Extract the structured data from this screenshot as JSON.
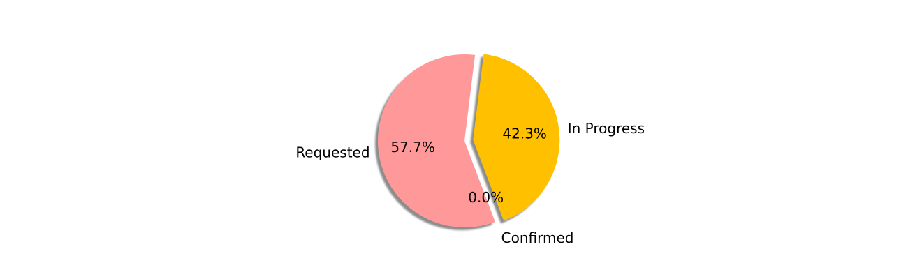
{
  "chart_data": {
    "type": "pie",
    "title": "",
    "slices": [
      {
        "label": "Requested",
        "value": 57.7,
        "pct_label": "57.7%",
        "color": "#ff9999",
        "explode": 0
      },
      {
        "label": "Confirmed",
        "value": 0.0,
        "pct_label": "0.0%",
        "color": "#66b3ff",
        "explode": 0.1
      },
      {
        "label": "In Progress",
        "value": 42.3,
        "pct_label": "42.3%",
        "color": "#ffc000",
        "explode": 0.1
      }
    ],
    "start_angle": 83,
    "direction": "counterclockwise",
    "shadow": true,
    "legend": "none"
  }
}
